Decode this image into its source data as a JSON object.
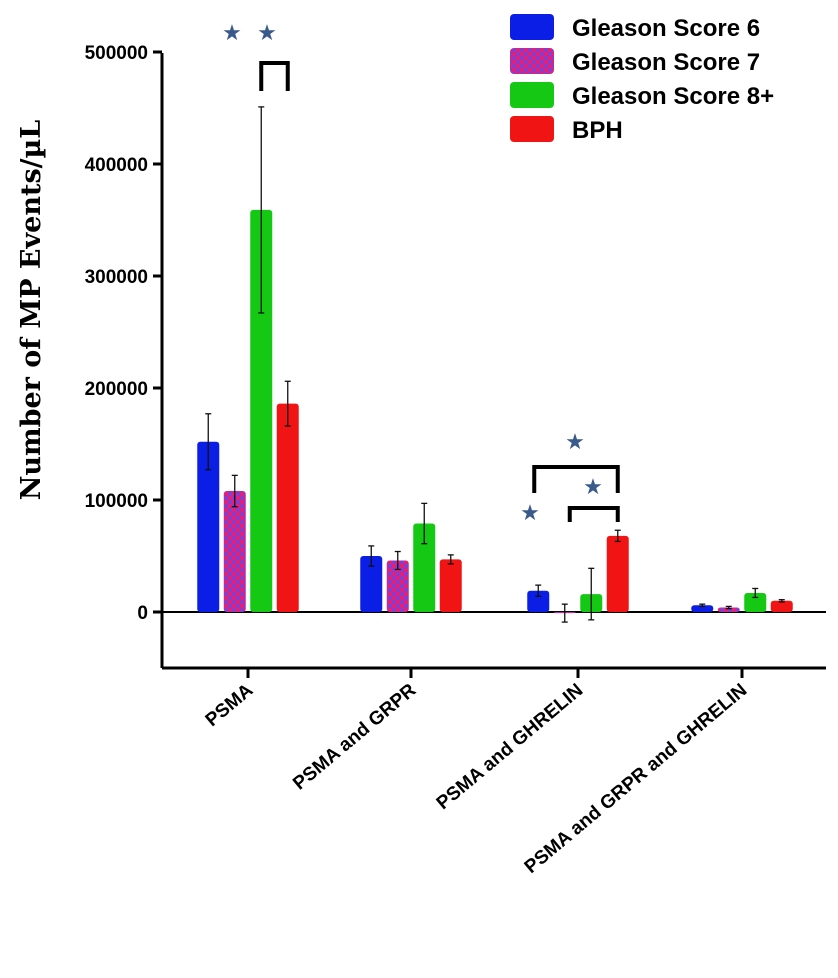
{
  "chart_data": {
    "type": "bar",
    "ylabel": "Number of MP Events/µL",
    "xlabel": "",
    "ylim": [
      -50000,
      500000
    ],
    "yticks": [
      0,
      100000,
      200000,
      300000,
      400000,
      500000
    ],
    "ytick_labels": [
      "0",
      "100000",
      "200000",
      "300000",
      "400000",
      "500000"
    ],
    "categories": [
      "PSMA",
      "PSMA and GRPR",
      "PSMA and GHRELIN",
      "PSMA and GRPR and GHRELIN"
    ],
    "series": [
      {
        "name": "Gleason Score 6",
        "color": "#0a1ee6",
        "pattern": "solid",
        "values": [
          152000,
          50000,
          19000,
          6000
        ],
        "errors": [
          25000,
          9000,
          5000,
          1000
        ]
      },
      {
        "name": "Gleason Score 7",
        "color": "#e0207a",
        "pattern": "checker",
        "values": [
          108000,
          46000,
          -1000,
          4000
        ],
        "errors": [
          14000,
          8000,
          8000,
          1000
        ]
      },
      {
        "name": "Gleason Score 8+",
        "color": "#14c814",
        "pattern": "solid",
        "values": [
          359000,
          79000,
          16000,
          17000
        ],
        "errors": [
          92000,
          18000,
          23000,
          4000
        ]
      },
      {
        "name": "BPH",
        "color": "#f01414",
        "pattern": "solid",
        "values": [
          186000,
          47000,
          68000,
          10000
        ],
        "errors": [
          20000,
          4000,
          5000,
          1000
        ]
      }
    ],
    "legend_position": "top-right",
    "grid": false,
    "significance_marker": "★",
    "significance": [
      {
        "category": 0,
        "from_series": 2,
        "to_series": 3,
        "star_count": 2
      },
      {
        "category": 2,
        "from_series": 0,
        "to_series": 3,
        "star_count": 1
      },
      {
        "category": 2,
        "from_series": 1,
        "to_series": 3,
        "star_count": 1
      },
      {
        "category": 2,
        "series": 0,
        "star_count": 1
      }
    ]
  }
}
